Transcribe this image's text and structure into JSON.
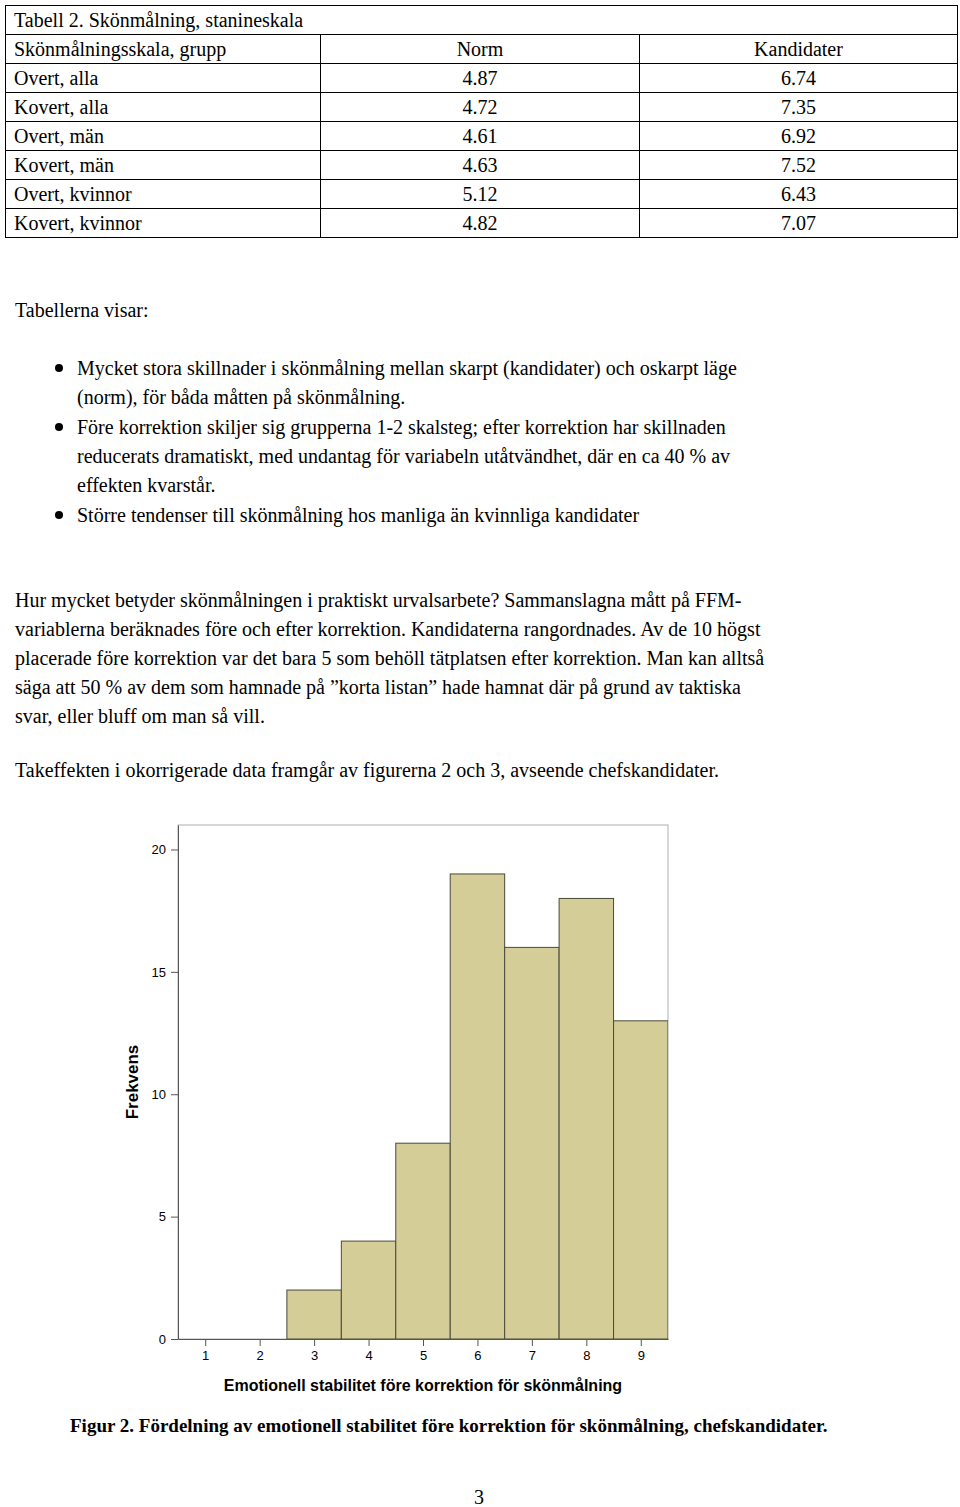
{
  "table": {
    "title": "Tabell 2. Skönmålning, stanineskala",
    "header": [
      "Skönmålningsskala, grupp",
      "Norm",
      "Kandidater"
    ],
    "rows": [
      [
        "Overt, alla",
        4.87,
        6.74
      ],
      [
        "Kovert, alla",
        4.72,
        7.35
      ],
      [
        "Overt, män",
        4.61,
        6.92
      ],
      [
        "Kovert, män",
        4.63,
        7.52
      ],
      [
        "Overt, kvinnor",
        5.12,
        6.43
      ],
      [
        "Kovert, kvinnor",
        4.82,
        7.07
      ]
    ]
  },
  "intro": "Tabellerna visar:",
  "bullets": [
    [
      "Mycket stora skillnader i skönmålning mellan skarpt (kandidater) och oskarpt läge",
      "(norm), för båda måtten på skönmålning."
    ],
    [
      "Före korrektion skiljer sig grupperna 1-2 skalsteg; efter korrektion har skillnaden",
      "reducerats dramatiskt, med undantag för variabeln utåtvändhet, där en ca 40 % av",
      "effekten kvarstår."
    ],
    [
      "Större tendenser till skönmålning hos manliga än kvinnliga kandidater"
    ]
  ],
  "paragraphs": [
    [
      "Hur mycket betyder skönmålningen i praktiskt urvalsarbete? Sammanslagna mått på FFM-",
      "variablerna beräknades före och efter korrektion. Kandidaterna rangordnades. Av de 10 högst",
      "placerade före korrektion var det bara 5 som behöll tätplatsen efter korrektion. Man kan alltså",
      "säga att 50 % av dem som hamnade på ”korta listan” hade hamnat där på grund av taktiska",
      "svar, eller bluff om man så vill."
    ],
    [
      "Takeffekten i okorrigerade data framgår av figurerna 2 och 3, avseende chefskandidater."
    ]
  ],
  "chart_data": {
    "type": "histogram",
    "x_label": "Emotionell stabilitet före korrektion för skönmålning",
    "y_label": "Frekvens",
    "bins": [
      0.5,
      1.5,
      2.5,
      3.5,
      4.5,
      5.5,
      6.5,
      7.5,
      8.5,
      9.5
    ],
    "values": [
      0,
      0,
      2,
      4,
      8,
      19,
      16,
      18,
      13
    ],
    "color": "#d4cd98",
    "xlim": [
      0.5,
      9.5
    ],
    "xticks": [
      1,
      2,
      3,
      4,
      5,
      6,
      7,
      8,
      9
    ],
    "ylim": [
      0,
      21
    ],
    "yticks": [
      0,
      5,
      10,
      15,
      20
    ]
  },
  "caption": "Figur 2. Fördelning av emotionell stabilitet före korrektion för skönmålning, chefskandidater.",
  "page_number": 3
}
